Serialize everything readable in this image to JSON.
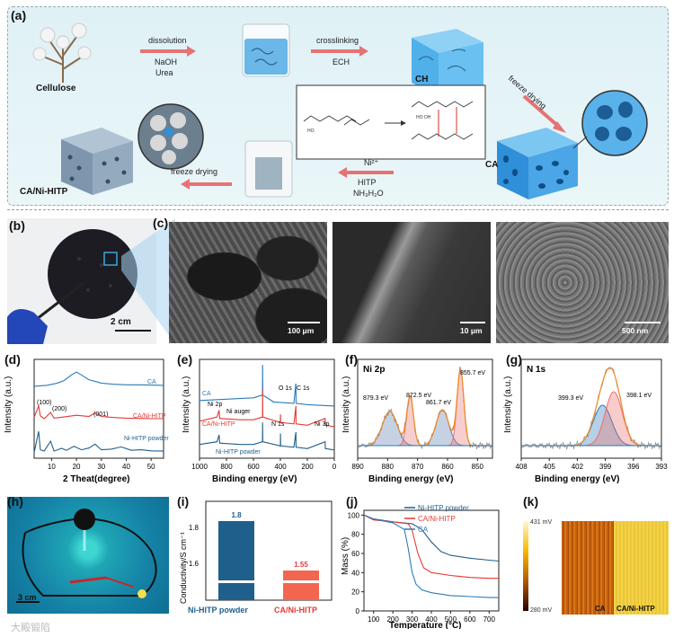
{
  "panels": {
    "a": "(a)",
    "b": "(b)",
    "c": "(c)",
    "d": "(d)",
    "e": "(e)",
    "f": "(f)",
    "g": "(g)",
    "h": "(h)",
    "i": "(i)",
    "j": "(j)",
    "k": "(k)"
  },
  "schematic": {
    "cellulose": "Cellulose",
    "dissolution": "dissolution",
    "naoh": "NaOH",
    "urea": "Urea",
    "crosslinking": "crosslinking",
    "ech": "ECH",
    "ch": "CH",
    "freeze_drying_right": "freeze drying",
    "ca": "CA",
    "ni": "Ni²⁺",
    "hitp": "HITP",
    "nh3": "NH₃H₂O",
    "freeze_drying_left": "freeze drying",
    "ca_ni_hitp": "CA/Ni-HITP"
  },
  "photo_b": {
    "scale": "2 cm"
  },
  "sem_c": {
    "scale1": "100 μm",
    "scale2": "10 μm",
    "scale3": "500 nm"
  },
  "photo_h": {
    "scale": "3 cm"
  },
  "watermark": "大殿锻陷",
  "colors": {
    "ca": "#2b7bb9",
    "ca_ni_hitp": "#e53935",
    "ni_hitp": "#1f5f8b",
    "orange": "#f08a24"
  },
  "chart_data": [
    {
      "panel": "d",
      "type": "line",
      "xlabel": "2 Theat(degree)",
      "ylabel": "Intensity (a.u.)",
      "xlim": [
        3,
        55
      ],
      "xticks": [
        "10",
        "20",
        "30",
        "40",
        "50"
      ],
      "series": [
        {
          "name": "CA",
          "x": [
            3,
            8,
            12,
            15,
            18,
            20,
            22,
            25,
            30,
            35,
            40,
            45,
            50,
            55
          ],
          "y": [
            2.55,
            2.58,
            2.65,
            2.75,
            2.95,
            3.05,
            2.95,
            2.78,
            2.66,
            2.62,
            2.6,
            2.6,
            2.59,
            2.58
          ]
        },
        {
          "name": "CA/Ni-HITP",
          "x": [
            3,
            4.8,
            5.5,
            7,
            9.6,
            11,
            15,
            20,
            25,
            27.5,
            30,
            35,
            40,
            45,
            50,
            55
          ],
          "y": [
            1.45,
            1.85,
            1.5,
            1.4,
            1.62,
            1.42,
            1.46,
            1.52,
            1.48,
            1.6,
            1.48,
            1.44,
            1.42,
            1.41,
            1.4,
            1.4
          ]
        },
        {
          "name": "Ni-HITP powder",
          "x": [
            3,
            4.8,
            5.5,
            7,
            9.6,
            11,
            14,
            16,
            19,
            22,
            25,
            27.5,
            30,
            34,
            38,
            42,
            46,
            50,
            55
          ],
          "y": [
            0.2,
            0.95,
            0.3,
            0.25,
            0.6,
            0.25,
            0.35,
            0.28,
            0.42,
            0.3,
            0.36,
            0.5,
            0.3,
            0.32,
            0.4,
            0.28,
            0.3,
            0.26,
            0.25
          ]
        }
      ],
      "annotations": [
        "(100)",
        "(200)",
        "(001)"
      ]
    },
    {
      "panel": "e",
      "type": "line",
      "xlabel": "Binding energy (eV)",
      "ylabel": "Intensity (a.u.)",
      "xlim": [
        1000,
        0
      ],
      "xticks": [
        "1000",
        "800",
        "600",
        "400",
        "200",
        "0"
      ],
      "series": [
        {
          "name": "CA",
          "x": [
            1000,
            800,
            600,
            533,
            532,
            531,
            450,
            300,
            286,
            285,
            284,
            200,
            0
          ],
          "y": [
            2.1,
            2.15,
            2.2,
            2.3,
            3.4,
            2.3,
            2.05,
            2.0,
            2.7,
            2.7,
            2.0,
            1.95,
            1.9
          ]
        },
        {
          "name": "CA/Ni-HITP",
          "x": [
            1000,
            870,
            855,
            850,
            700,
            600,
            533,
            532,
            531,
            400,
            399,
            398,
            300,
            285,
            284,
            200,
            68,
            67,
            0
          ],
          "y": [
            1.35,
            1.5,
            1.75,
            1.45,
            1.4,
            1.4,
            1.5,
            2.5,
            1.5,
            1.3,
            1.6,
            1.3,
            1.25,
            1.9,
            1.25,
            1.2,
            1.45,
            1.2,
            1.15
          ]
        },
        {
          "name": "Ni-HITP powder",
          "x": [
            1000,
            870,
            855,
            850,
            700,
            600,
            533,
            532,
            531,
            400,
            399,
            398,
            300,
            285,
            284,
            200,
            68,
            67,
            0
          ],
          "y": [
            0.5,
            0.6,
            0.85,
            0.55,
            0.5,
            0.5,
            0.6,
            1.3,
            0.6,
            0.45,
            0.9,
            0.45,
            0.4,
            0.95,
            0.4,
            0.35,
            0.6,
            0.35,
            0.3
          ]
        }
      ],
      "annotations": [
        "Ni 2p",
        "Ni auger",
        "O 1s",
        "C 1s",
        "N 1s",
        "Ni 3p"
      ]
    },
    {
      "panel": "f",
      "type": "line",
      "title": "Ni 2p",
      "xlabel": "Binding energy (eV)",
      "ylabel": "Intensity (a.u.)",
      "xlim": [
        890,
        845
      ],
      "xticks": [
        "890",
        "880",
        "870",
        "860",
        "850"
      ],
      "peaks": [
        {
          "center": 879.3,
          "label": "879.3 eV"
        },
        {
          "center": 872.5,
          "label": "872.5 eV"
        },
        {
          "center": 861.7,
          "label": "861.7 eV"
        },
        {
          "center": 855.7,
          "label": "855.7 eV"
        }
      ]
    },
    {
      "panel": "g",
      "type": "line",
      "title": "N 1s",
      "xlabel": "Binding energy (eV)",
      "ylabel": "Intensity (a.u.)",
      "xlim": [
        408,
        393
      ],
      "xticks": [
        "408",
        "405",
        "402",
        "399",
        "396",
        "393"
      ],
      "peaks": [
        {
          "center": 399.3,
          "label": "399.3 eV"
        },
        {
          "center": 398.1,
          "label": "398.1 eV"
        }
      ]
    },
    {
      "panel": "i",
      "type": "bar",
      "ylabel": "Conductivity/S cm⁻¹",
      "categories": [
        "Ni-HITP powder",
        "CA/Ni-HITP"
      ],
      "values": [
        1.8,
        1.55
      ],
      "value_labels": [
        "1.8",
        "1.55"
      ],
      "yticks": [
        "1.6",
        "1.8"
      ]
    },
    {
      "panel": "j",
      "type": "line",
      "xlabel": "Temperature (°C)",
      "ylabel": "Mass (%)",
      "xlim": [
        50,
        750
      ],
      "ylim": [
        0,
        105
      ],
      "xticks": [
        "100",
        "200",
        "300",
        "400",
        "500",
        "600",
        "700"
      ],
      "yticks": [
        "0",
        "20",
        "40",
        "60",
        "80",
        "100"
      ],
      "series": [
        {
          "name": "Ni-HITP powder",
          "x": [
            50,
            100,
            200,
            300,
            350,
            400,
            450,
            500,
            600,
            700,
            750
          ],
          "y": [
            100,
            96,
            93,
            91,
            85,
            72,
            62,
            58,
            55,
            53,
            52
          ]
        },
        {
          "name": "CA/Ni-HITP",
          "x": [
            50,
            100,
            200,
            280,
            300,
            330,
            360,
            400,
            500,
            600,
            700,
            750
          ],
          "y": [
            100,
            95,
            93,
            91,
            84,
            60,
            45,
            40,
            37,
            35,
            34,
            34
          ]
        },
        {
          "name": "CA",
          "x": [
            50,
            100,
            200,
            260,
            280,
            300,
            320,
            350,
            400,
            500,
            600,
            700,
            750
          ],
          "y": [
            100,
            96,
            92,
            85,
            65,
            40,
            28,
            22,
            19,
            16,
            15,
            14,
            14
          ]
        }
      ]
    },
    {
      "panel": "k",
      "type": "heatmap",
      "scale_max": "431 mV",
      "scale_min": "280 mV",
      "labels": [
        "CA",
        "CA/Ni-HITP"
      ]
    }
  ]
}
